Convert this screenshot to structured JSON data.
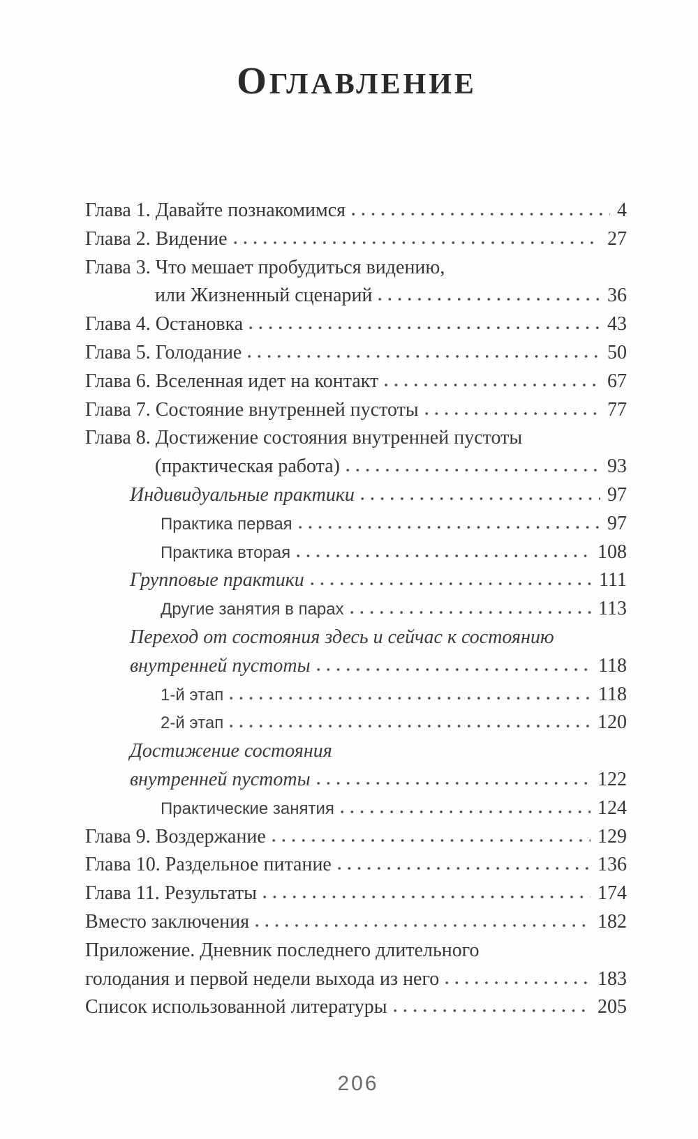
{
  "document": {
    "title": "Оглавление",
    "folio": "206",
    "colors": {
      "paper": "#fefefe",
      "ink": "#363636",
      "folio_gray": "#6b6b6b"
    },
    "toc_lines": [
      {
        "text": "Глава 1. Давайте познакомимся",
        "page": "4",
        "style": "chapter",
        "indent": 0
      },
      {
        "text": "Глава 2. Видение",
        "page": "27",
        "style": "chapter",
        "indent": 0
      },
      {
        "text": "Глава 3. Что мешает пробудиться видению,",
        "page": null,
        "style": "chapter",
        "indent": 0
      },
      {
        "text": "или Жизненный сценарий",
        "page": "36",
        "style": "chapter",
        "indent": 2
      },
      {
        "text": "Глава 4. Остановка",
        "page": "43",
        "style": "chapter",
        "indent": 0
      },
      {
        "text": "Глава 5. Голодание",
        "page": "50",
        "style": "chapter",
        "indent": 0
      },
      {
        "text": "Глава 6. Вселенная идет на контакт",
        "page": "67",
        "style": "chapter",
        "indent": 0
      },
      {
        "text": "Глава 7. Состояние внутренней пустоты",
        "page": "77",
        "style": "chapter",
        "indent": 0
      },
      {
        "text": "Глава 8. Достижение состояния внутренней пустоты",
        "page": null,
        "style": "chapter",
        "indent": 0
      },
      {
        "text": "(практическая работа)",
        "page": "93",
        "style": "chapter",
        "indent": 2
      },
      {
        "text": "Индивидуальные практики",
        "page": "97",
        "style": "italic",
        "indent": 1
      },
      {
        "text": "Практика первая",
        "page": "97",
        "style": "sans",
        "indent": 2
      },
      {
        "text": "Практика вторая",
        "page": "108",
        "style": "sans",
        "indent": 2
      },
      {
        "text": "Групповые практики",
        "page": "111",
        "style": "italic",
        "indent": 1
      },
      {
        "text": "Другие занятия в парах",
        "page": "113",
        "style": "sans",
        "indent": 2
      },
      {
        "text": "Переход от состояния здесь и сейчас к состоянию",
        "page": null,
        "style": "italic",
        "indent": 1
      },
      {
        "text": "внутренней пустоты",
        "page": "118",
        "style": "italic",
        "indent": 1
      },
      {
        "text": "1-й этап",
        "page": "118",
        "style": "sans",
        "indent": 2
      },
      {
        "text": "2-й этап",
        "page": "120",
        "style": "sans",
        "indent": 2
      },
      {
        "text": "Достижение состояния",
        "page": null,
        "style": "italic",
        "indent": 1
      },
      {
        "text": "внутренней пустоты",
        "page": "122",
        "style": "italic",
        "indent": 1
      },
      {
        "text": "Практические занятия",
        "page": "124",
        "style": "sans",
        "indent": 2
      },
      {
        "text": "Глава 9. Воздержание",
        "page": "129",
        "style": "chapter",
        "indent": 0
      },
      {
        "text": "Глава 10. Раздельное питание",
        "page": "136",
        "style": "chapter",
        "indent": 0
      },
      {
        "text": "Глава 11. Результаты",
        "page": "174",
        "style": "chapter",
        "indent": 0
      },
      {
        "text": "Вместо заключения",
        "page": "182",
        "style": "chapter",
        "indent": 0
      },
      {
        "text": "Приложение. Дневник последнего длительного",
        "page": null,
        "style": "chapter",
        "indent": 0
      },
      {
        "text": "голодания и первой недели выхода из него",
        "page": "183",
        "style": "chapter",
        "indent": 0
      },
      {
        "text": "Список использованной литературы",
        "page": "205",
        "style": "chapter",
        "indent": 0
      }
    ]
  }
}
